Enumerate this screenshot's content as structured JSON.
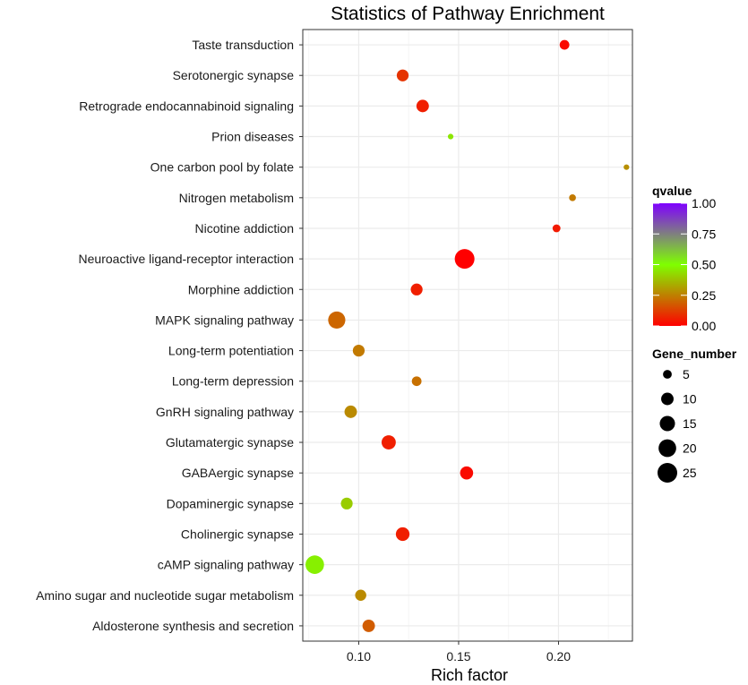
{
  "chart_data": {
    "type": "scatter",
    "title": "Statistics of Pathway Enrichment",
    "xlabel": "Rich factor",
    "ylabel": "",
    "xlim": [
      0.072,
      0.237
    ],
    "xticks": [
      0.1,
      0.15,
      0.2
    ],
    "xtick_labels": [
      "0.10",
      "0.15",
      "0.20"
    ],
    "grid": true,
    "points": [
      {
        "pathway": "Taste transduction",
        "rich_factor": 0.203,
        "qvalue": 0.02,
        "gene_number": 6
      },
      {
        "pathway": "Serotonergic synapse",
        "rich_factor": 0.122,
        "qvalue": 0.1,
        "gene_number": 9
      },
      {
        "pathway": "Retrograde endocannabinoid signaling",
        "rich_factor": 0.132,
        "qvalue": 0.06,
        "gene_number": 10
      },
      {
        "pathway": "Prion diseases",
        "rich_factor": 0.146,
        "qvalue": 0.45,
        "gene_number": 2
      },
      {
        "pathway": "One carbon pool by folate",
        "rich_factor": 0.234,
        "qvalue": 0.28,
        "gene_number": 2
      },
      {
        "pathway": "Nitrogen metabolism",
        "rich_factor": 0.207,
        "qvalue": 0.24,
        "gene_number": 3
      },
      {
        "pathway": "Nicotine addiction",
        "rich_factor": 0.199,
        "qvalue": 0.05,
        "gene_number": 4
      },
      {
        "pathway": "Neuroactive ligand-receptor interaction",
        "rich_factor": 0.153,
        "qvalue": 0.0,
        "gene_number": 25
      },
      {
        "pathway": "Morphine addiction",
        "rich_factor": 0.129,
        "qvalue": 0.06,
        "gene_number": 9
      },
      {
        "pathway": "MAPK signaling pathway",
        "rich_factor": 0.089,
        "qvalue": 0.2,
        "gene_number": 19
      },
      {
        "pathway": "Long-term potentiation",
        "rich_factor": 0.1,
        "qvalue": 0.24,
        "gene_number": 9
      },
      {
        "pathway": "Long-term depression",
        "rich_factor": 0.129,
        "qvalue": 0.22,
        "gene_number": 6
      },
      {
        "pathway": "GnRH signaling pathway",
        "rich_factor": 0.096,
        "qvalue": 0.27,
        "gene_number": 10
      },
      {
        "pathway": "Glutamatergic synapse",
        "rich_factor": 0.115,
        "qvalue": 0.06,
        "gene_number": 13
      },
      {
        "pathway": "GABAergic synapse",
        "rich_factor": 0.154,
        "qvalue": 0.02,
        "gene_number": 11
      },
      {
        "pathway": "Dopaminergic synapse",
        "rich_factor": 0.094,
        "qvalue": 0.4,
        "gene_number": 9
      },
      {
        "pathway": "Cholinergic synapse",
        "rich_factor": 0.122,
        "qvalue": 0.06,
        "gene_number": 12
      },
      {
        "pathway": "cAMP signaling pathway",
        "rich_factor": 0.078,
        "qvalue": 0.47,
        "gene_number": 22
      },
      {
        "pathway": "Amino sugar and nucleotide sugar metabolism",
        "rich_factor": 0.101,
        "qvalue": 0.27,
        "gene_number": 8
      },
      {
        "pathway": "Aldosterone synthesis and secretion",
        "rich_factor": 0.105,
        "qvalue": 0.18,
        "gene_number": 10
      }
    ],
    "legend_color": {
      "title": "qvalue",
      "ticks": [
        0.0,
        0.25,
        0.5,
        0.75,
        1.0
      ],
      "tick_labels": [
        "0.00",
        "0.25",
        "0.50",
        "0.75",
        "1.00"
      ],
      "colors": [
        "#ff0000",
        "#7fff00",
        "#7f00ff"
      ],
      "placement": "right"
    },
    "legend_size": {
      "title": "Gene_number",
      "values": [
        5,
        10,
        15,
        20,
        25
      ],
      "labels": [
        "5",
        "10",
        "15",
        "20",
        "25"
      ],
      "placement": "right"
    }
  },
  "colors": {
    "panel_background": "#ffffff",
    "panel_border": "#333333",
    "grid_major": "#ebebeb",
    "grid_minor": "#f5f5f5",
    "point_stroke": "none"
  }
}
